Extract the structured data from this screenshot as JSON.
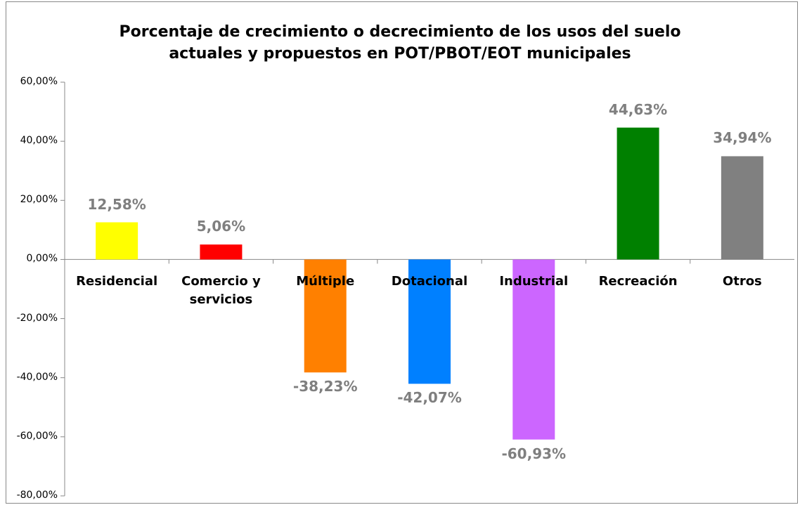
{
  "chart_data": {
    "type": "bar",
    "title": "Porcentaje de crecimiento o decrecimiento de los usos del suelo actuales y propuestos en POT/PBOT/EOT municipales",
    "categories": [
      "Residencial",
      "Comercio y servicios",
      "Múltiple",
      "Dotacional",
      "Industrial",
      "Recreación",
      "Otros"
    ],
    "values": [
      12.58,
      5.06,
      -38.23,
      -42.07,
      -60.93,
      44.63,
      34.94
    ],
    "value_labels": [
      "12,58%",
      "5,06%",
      "-38,23%",
      "-42,07%",
      "-60,93%",
      "44,63%",
      "34,94%"
    ],
    "colors": [
      "#ffff00",
      "#ff0000",
      "#ff8000",
      "#0080ff",
      "#cc66ff",
      "#008000",
      "#808080"
    ],
    "ylim": [
      -80,
      60
    ],
    "yticks": [
      {
        "value": -80,
        "label": "-80,00%"
      },
      {
        "value": -60,
        "label": "-60,00%"
      },
      {
        "value": -40,
        "label": "-40,00%"
      },
      {
        "value": -20,
        "label": "-20,00%"
      },
      {
        "value": 0,
        "label": "0,00%"
      },
      {
        "value": 20,
        "label": "20,00%"
      },
      {
        "value": 40,
        "label": "40,00%"
      },
      {
        "value": 60,
        "label": "60,00%"
      }
    ],
    "grid": false
  }
}
